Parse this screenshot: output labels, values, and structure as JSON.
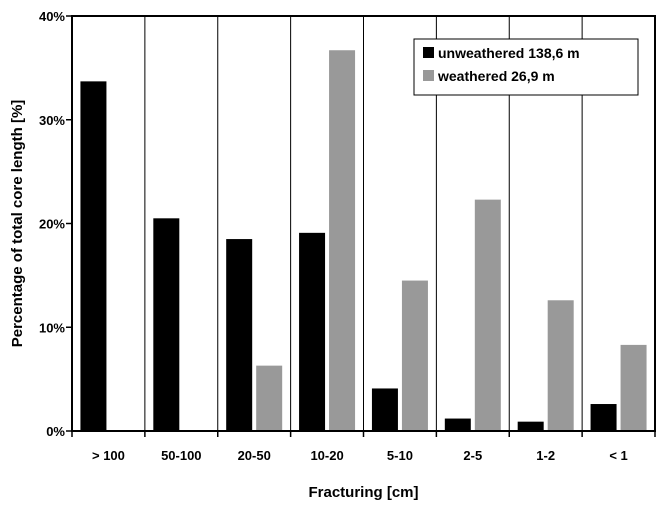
{
  "chart_data": {
    "type": "bar",
    "xlabel": "Fracturing [cm]",
    "ylabel": "Percentage of total core length [%]",
    "categories": [
      "> 100",
      "50-100",
      "20-50",
      "10-20",
      "5-10",
      "2-5",
      "1-2",
      "< 1"
    ],
    "series": [
      {
        "name": "unweathered 138,6 m",
        "color": "#000000",
        "values": [
          33.7,
          20.5,
          18.5,
          19.1,
          4.1,
          1.2,
          0.9,
          2.6
        ]
      },
      {
        "name": "weathered 26,9 m",
        "color": "#999999",
        "values": [
          0,
          0,
          6.3,
          36.7,
          14.5,
          22.3,
          12.6,
          8.3
        ]
      }
    ],
    "ylim": [
      0,
      40
    ],
    "yticks": [
      0,
      10,
      20,
      30,
      40
    ],
    "ytick_labels": [
      "0%",
      "10%",
      "20%",
      "30%",
      "40%"
    ],
    "grid": {
      "vertical": true,
      "horizontal": false
    },
    "legend_position": "top-right"
  }
}
